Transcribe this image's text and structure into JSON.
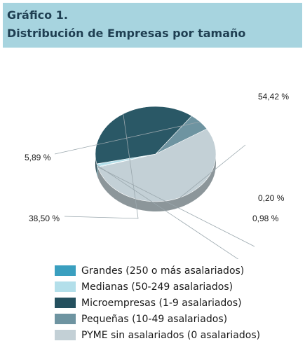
{
  "header": {
    "line1": "Gráfico 1.",
    "line2": "Distribución de Empresas por tamaño"
  },
  "chart_data": {
    "type": "pie",
    "style": "3d",
    "title": "Distribución de Empresas por tamaño",
    "slices": [
      {
        "name": "PYME sin asalariados (0 asalariados)",
        "value": 54.42,
        "label": "54,42 %",
        "color": "#c3d0d6"
      },
      {
        "name": "Grandes (250 o más asalariados)",
        "value": 0.2,
        "label": "0,20 %",
        "color": "#3a9fbf"
      },
      {
        "name": "Medianas (50-249 asalariados)",
        "value": 0.98,
        "label": "0,98 %",
        "color": "#b3dfea"
      },
      {
        "name": "Microempresas (1-9 asalariados)",
        "value": 38.5,
        "label": "38,50 %",
        "color": "#2a5866"
      },
      {
        "name": "Pequeñas (10-49 asalariados)",
        "value": 5.89,
        "label": "5,89 %",
        "color": "#6e94a1"
      }
    ],
    "legend": [
      {
        "label": "Grandes (250 o más asalariados)",
        "color": "#3a9fbf"
      },
      {
        "label": "Medianas (50-249 asalariados)",
        "color": "#b3dfea"
      },
      {
        "label": "Microempresas (1-9 asalariados)",
        "color": "#24505e"
      },
      {
        "label": "Pequeñas (10-49 asalariados)",
        "color": "#6e94a1"
      },
      {
        "label": "PYME sin asalariados (0 asalariados)",
        "color": "#c3d0d6"
      }
    ],
    "legend_position": "bottom"
  }
}
